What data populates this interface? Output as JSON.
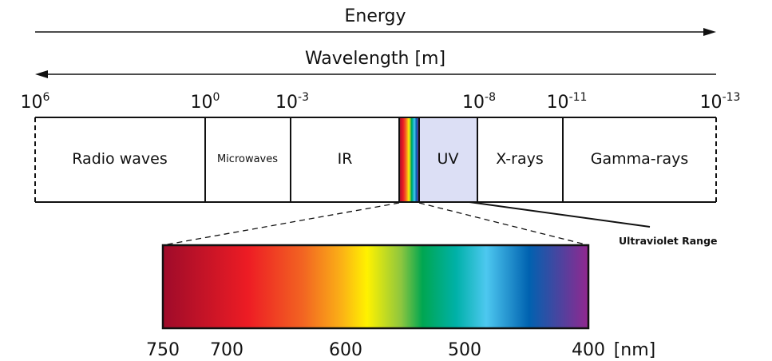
{
  "energy_label": "Energy",
  "wavelength_label": "Wavelength [m]",
  "scale_ticks": [
    {
      "base": "10",
      "exp": "6"
    },
    {
      "base": "10",
      "exp": "0"
    },
    {
      "base": "10",
      "exp": "-3"
    },
    {
      "base": "10",
      "exp": "-8"
    },
    {
      "base": "10",
      "exp": "-11"
    },
    {
      "base": "10",
      "exp": "-13"
    }
  ],
  "bands": {
    "radio": "Radio waves",
    "microwaves": "Microwaves",
    "ir": "IR",
    "uv": "UV",
    "xrays": "X-rays",
    "gamma": "Gamma-rays"
  },
  "uv_callout": "Ultraviolet Range",
  "visible_ticks": [
    "750",
    "700",
    "600",
    "500",
    "400"
  ],
  "visible_unit": "[nm]",
  "colors": {
    "uv_fill": "#dcdff5",
    "spectrum": [
      "#9e0b2a",
      "#ed1c24",
      "#f26522",
      "#fbb116",
      "#fff200",
      "#8dc63f",
      "#00a651",
      "#00b1a9",
      "#4dc8f0",
      "#0062b0",
      "#92278f"
    ]
  }
}
